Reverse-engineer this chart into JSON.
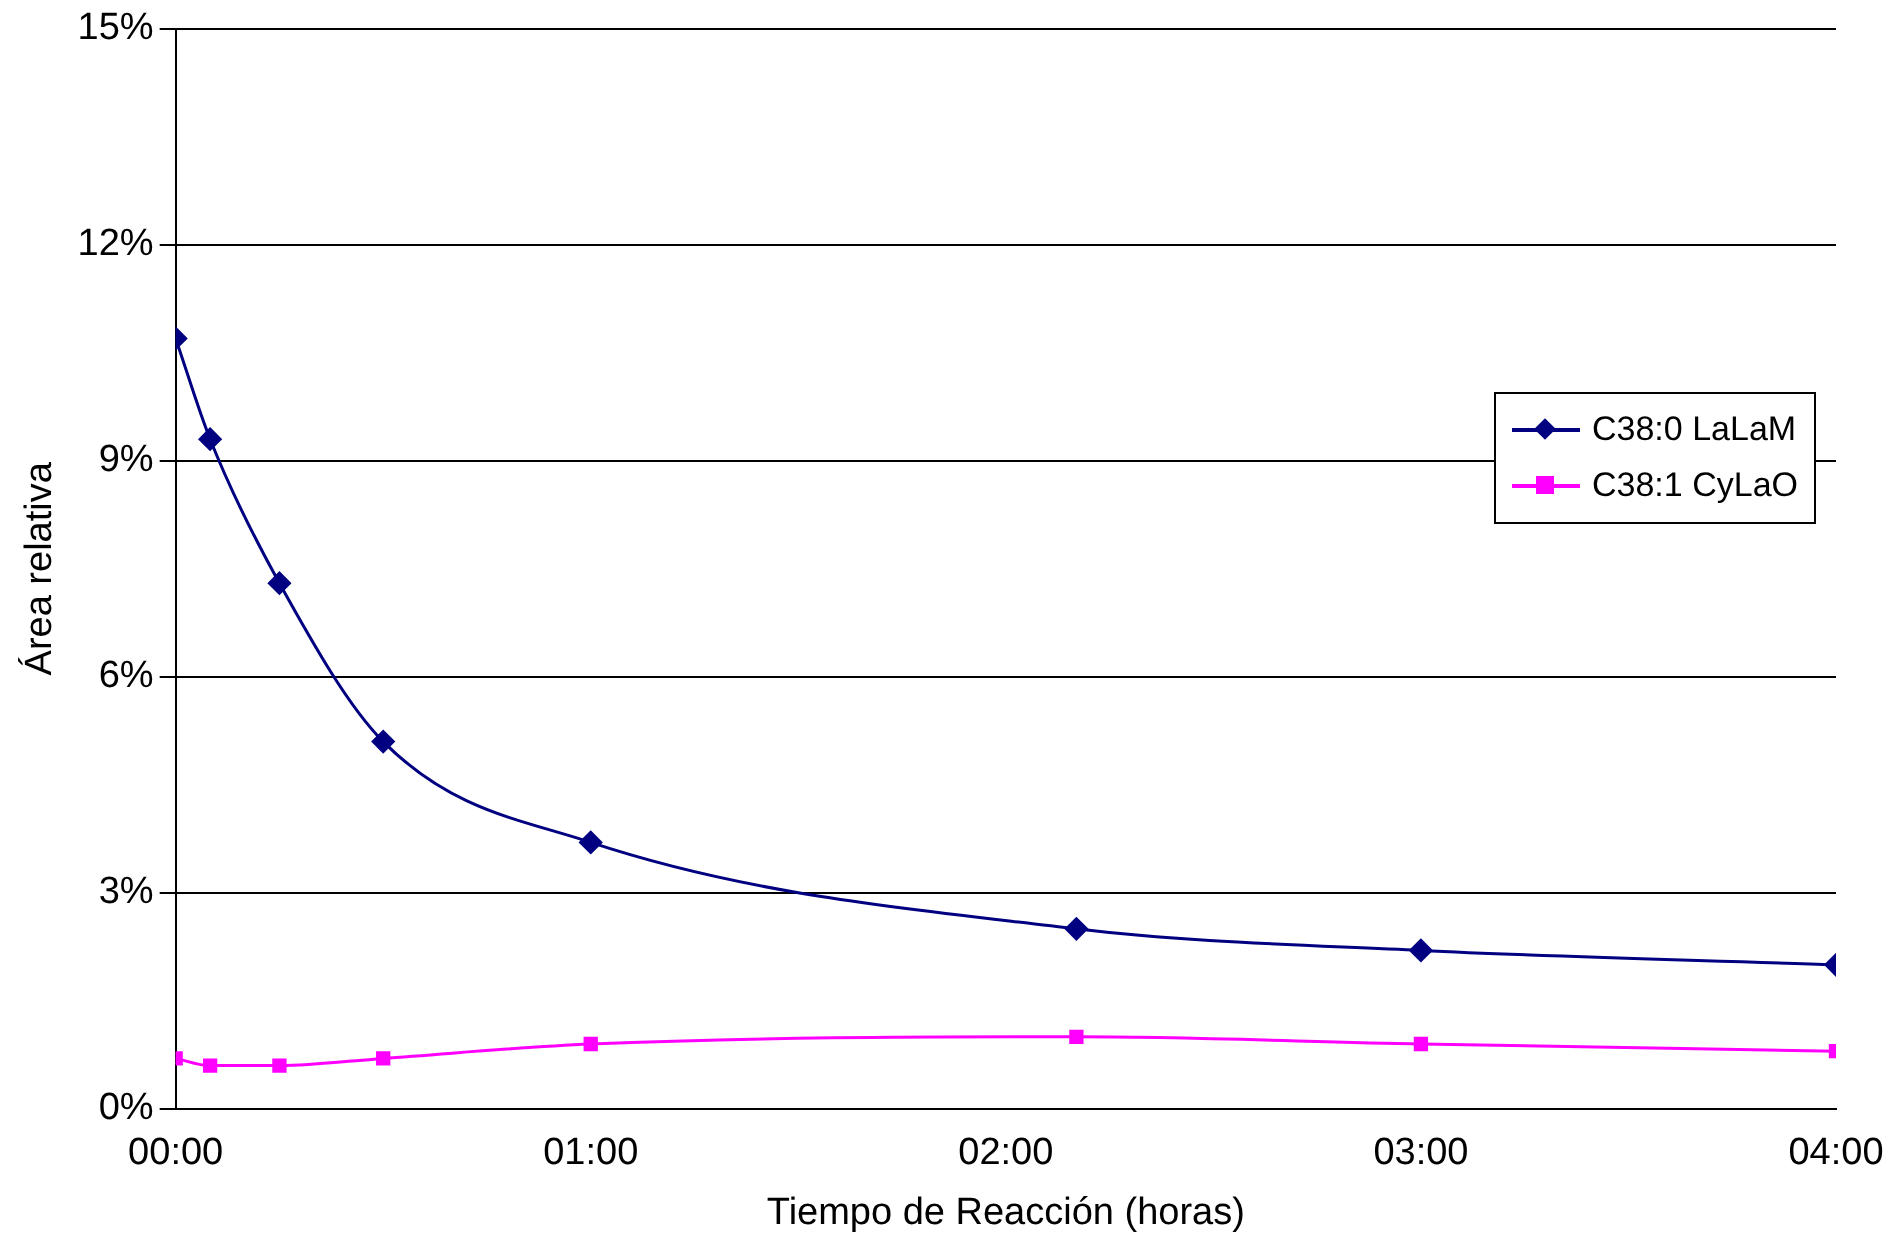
{
  "chart_data": {
    "type": "line",
    "xlabel": "Tiempo de Reacción (horas)",
    "ylabel": "Área relativa",
    "xlim": [
      0,
      4
    ],
    "xticks": [
      {
        "value": 0,
        "label": "00:00"
      },
      {
        "value": 1,
        "label": "01:00"
      },
      {
        "value": 2,
        "label": "02:00"
      },
      {
        "value": 3,
        "label": "03:00"
      },
      {
        "value": 4,
        "label": "04:00"
      }
    ],
    "ylim": [
      0,
      15
    ],
    "yticks": [
      {
        "value": 0,
        "label": "0%"
      },
      {
        "value": 3,
        "label": "3%"
      },
      {
        "value": 6,
        "label": "6%"
      },
      {
        "value": 9,
        "label": "9%"
      },
      {
        "value": 12,
        "label": "12%"
      },
      {
        "value": 15,
        "label": "15%"
      }
    ],
    "grid": "y",
    "legend": "right",
    "series": [
      {
        "name": "C38:0 LaLaM",
        "color": "#000080",
        "marker": "diamond",
        "x": [
          0,
          0.083,
          0.25,
          0.5,
          1,
          2.17,
          3,
          4
        ],
        "values": [
          10.7,
          9.3,
          7.3,
          5.1,
          3.7,
          2.5,
          2.2,
          2.0
        ]
      },
      {
        "name": "C38:1 CyLaO",
        "color": "#ff00ff",
        "marker": "square",
        "x": [
          0,
          0.083,
          0.25,
          0.5,
          1,
          2.17,
          3,
          4
        ],
        "values": [
          0.7,
          0.6,
          0.6,
          0.7,
          0.9,
          1.0,
          0.9,
          0.8
        ]
      }
    ]
  }
}
